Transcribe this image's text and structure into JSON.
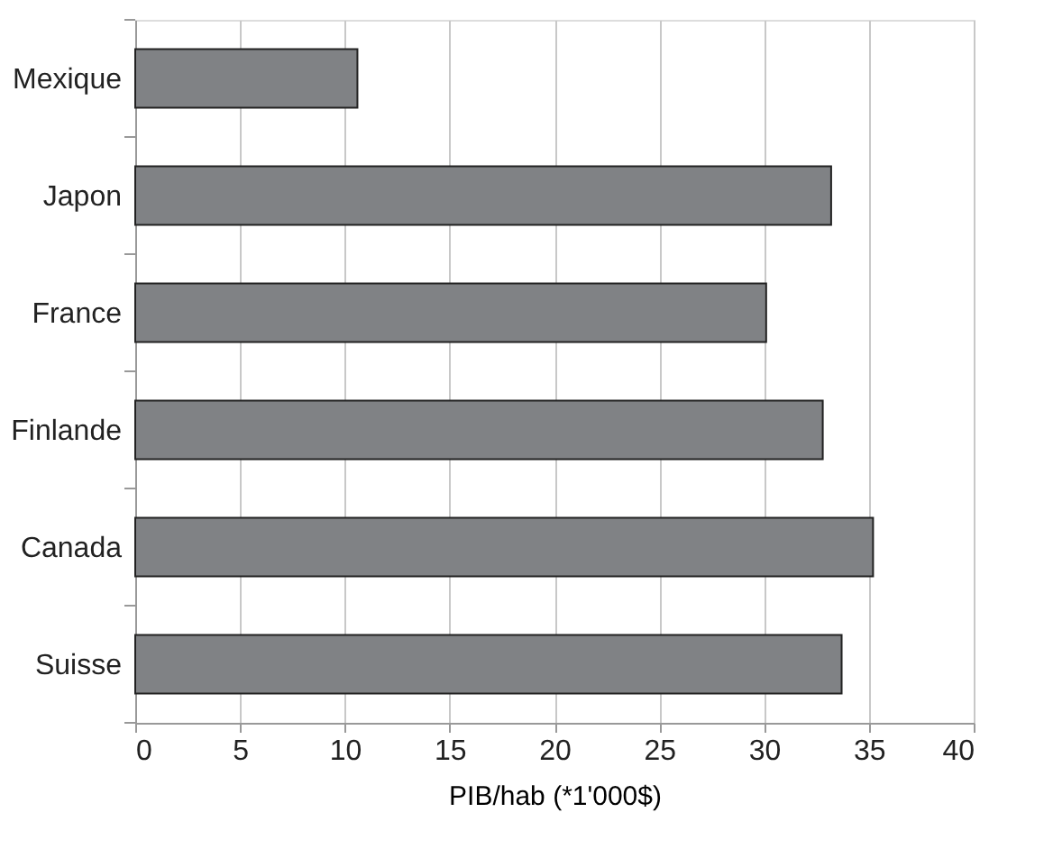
{
  "chart_data": {
    "type": "bar",
    "orientation": "horizontal",
    "xlabel": "PIB/hab (*1'000$)",
    "categories": [
      "Mexique",
      "Japon",
      "France",
      "Finlande",
      "Canada",
      "Suisse"
    ],
    "values": [
      10.6,
      33.2,
      30.1,
      32.8,
      35.2,
      33.7
    ],
    "color": "#808285",
    "xlim": [
      0,
      40
    ],
    "xticks": [
      0,
      5,
      10,
      15,
      20,
      25,
      30,
      35,
      40
    ],
    "grid": "x"
  }
}
